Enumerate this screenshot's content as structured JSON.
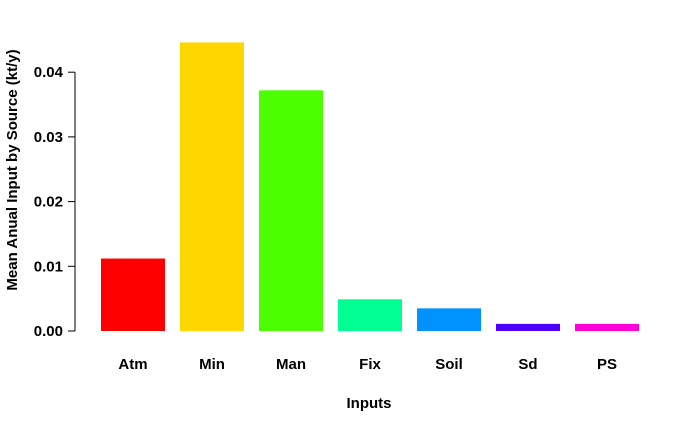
{
  "chart_data": {
    "type": "bar",
    "title": "",
    "xlabel": "Inputs",
    "ylabel": "Mean Anual Input by Source (kt/y)",
    "categories": [
      "Atm",
      "Min",
      "Man",
      "Fix",
      "Soil",
      "Sd",
      "PS"
    ],
    "values": [
      0.0112,
      0.0446,
      0.0372,
      0.0049,
      0.0035,
      0.0011,
      0.0011
    ],
    "colors": [
      "#ff0000",
      "#ffd700",
      "#4cff00",
      "#00ff92",
      "#0092ff",
      "#4c00ff",
      "#ff00db"
    ],
    "ylim": [
      0,
      0.046
    ],
    "yticks": [
      0,
      0.01,
      0.02,
      0.03,
      0.04
    ],
    "ytick_labels": [
      "0.00",
      "0.01",
      "0.02",
      "0.03",
      "0.04"
    ],
    "grid": false,
    "legend": "none"
  }
}
